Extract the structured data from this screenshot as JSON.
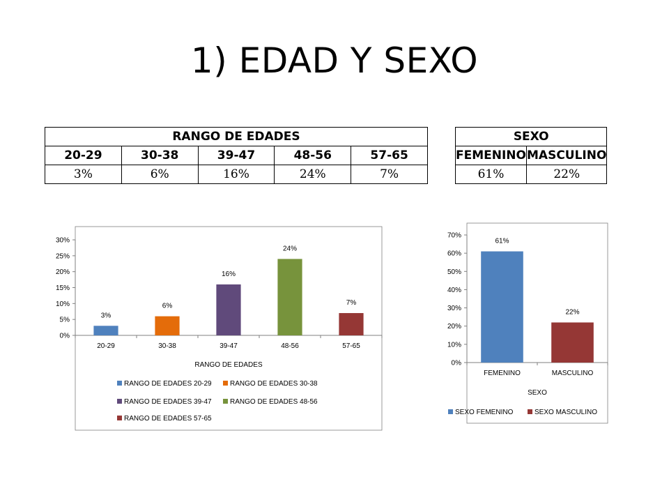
{
  "slide": {
    "title": "1) EDAD Y SEXO"
  },
  "tables": {
    "edades": {
      "title": "RANGO DE EDADES",
      "headers": [
        "20-29",
        "30-38",
        "39-47",
        "48-56",
        "57-65"
      ],
      "values": [
        "3%",
        "6%",
        "16%",
        "24%",
        "7%"
      ]
    },
    "sexo": {
      "title": "SEXO",
      "headers": [
        "FEMENINO",
        "MASCULINO"
      ],
      "values": [
        "61%",
        "22%"
      ]
    }
  },
  "chart_data": [
    {
      "type": "bar",
      "categories": [
        "20-29",
        "30-38",
        "39-47",
        "48-56",
        "57-65"
      ],
      "values": [
        3,
        6,
        16,
        24,
        7
      ],
      "data_labels": [
        "3%",
        "6%",
        "16%",
        "24%",
        "7%"
      ],
      "colors": [
        "#4f81bd",
        "#e46c0a",
        "#604a7b",
        "#77933c",
        "#953735"
      ],
      "xlabel": "RANGO DE EDADES",
      "ylabel": "",
      "ylim": [
        0,
        30
      ],
      "yticks": [
        "0%",
        "5%",
        "10%",
        "15%",
        "20%",
        "25%",
        "30%"
      ],
      "legend": [
        "RANGO DE EDADES 20-29",
        "RANGO DE EDADES 30-38",
        "RANGO DE EDADES 39-47",
        "RANGO DE EDADES 48-56",
        "RANGO DE EDADES 57-65"
      ],
      "legend_placement": "bottom",
      "grid": false
    },
    {
      "type": "bar",
      "categories": [
        "FEMENINO",
        "MASCULINO"
      ],
      "values": [
        61,
        22
      ],
      "data_labels": [
        "61%",
        "22%"
      ],
      "colors": [
        "#4f81bd",
        "#953735"
      ],
      "xlabel": "SEXO",
      "ylabel": "",
      "ylim": [
        0,
        70
      ],
      "yticks": [
        "0%",
        "10%",
        "20%",
        "30%",
        "40%",
        "50%",
        "60%",
        "70%"
      ],
      "legend": [
        "SEXO FEMENINO",
        "SEXO MASCULINO"
      ],
      "legend_placement": "bottom",
      "grid": false
    }
  ]
}
